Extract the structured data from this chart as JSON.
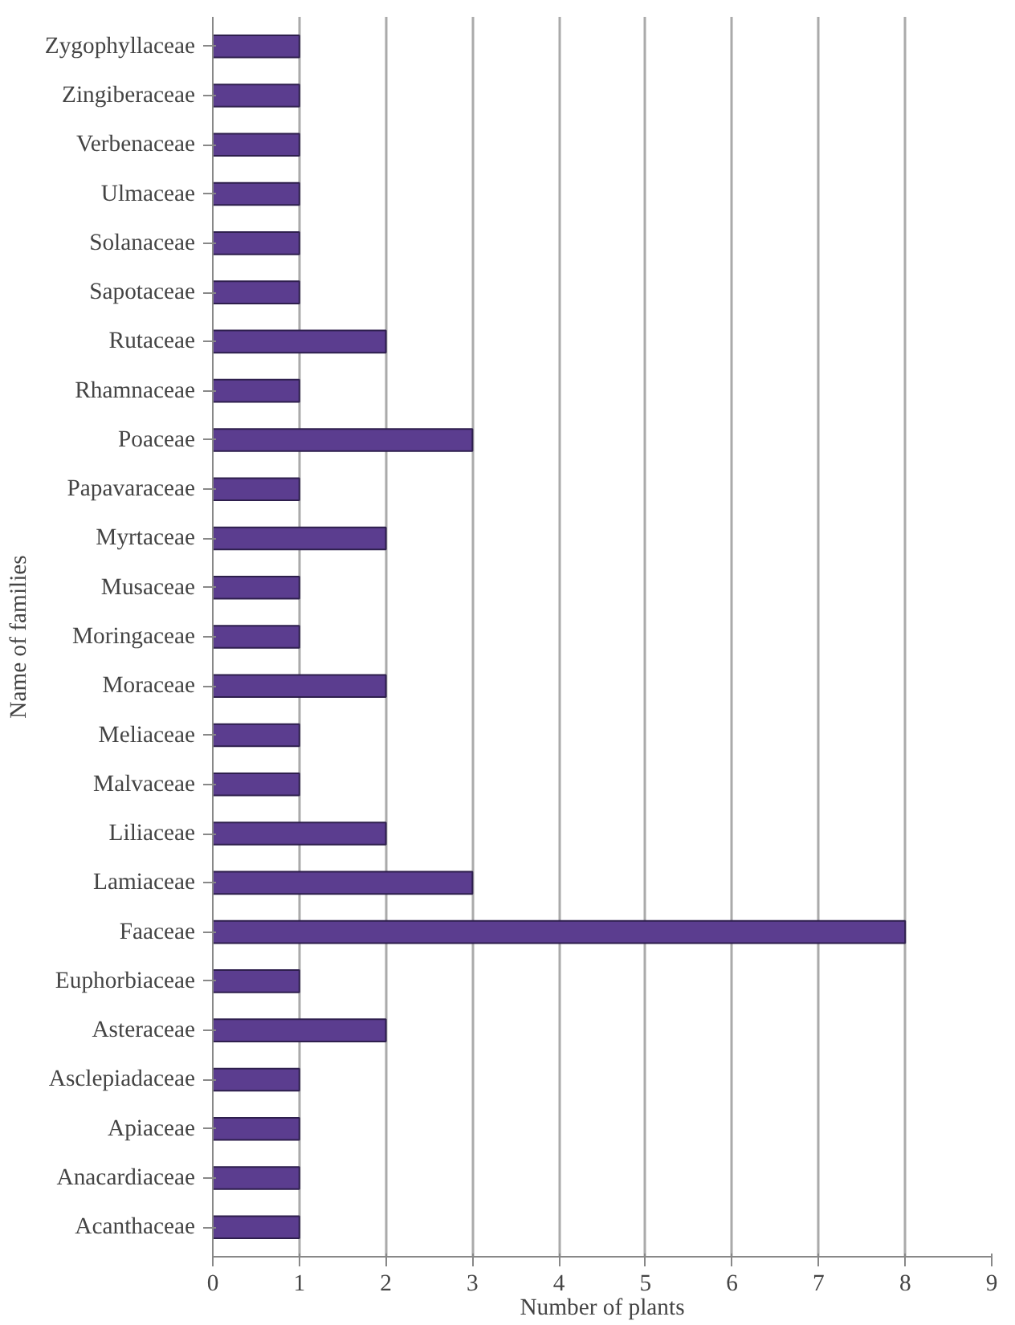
{
  "chart_data": {
    "type": "bar",
    "orientation": "horizontal",
    "xlabel": "Number of plants",
    "ylabel": "Name of families",
    "categories": [
      "Zygophyllaceae",
      "Zingiberaceae",
      "Verbenaceae",
      "Ulmaceae",
      "Solanaceae",
      "Sapotaceae",
      "Rutaceae",
      "Rhamnaceae",
      "Poaceae",
      "Papavaraceae",
      "Myrtaceae",
      "Musaceae",
      "Moringaceae",
      "Moraceae",
      "Meliaceae",
      "Malvaceae",
      "Liliaceae",
      "Lamiaceae",
      "Faaceae",
      "Euphorbiaceae",
      "Asteraceae",
      "Asclepiadaceae",
      "Apiaceae",
      "Anacardiaceae",
      "Acanthaceae"
    ],
    "values": [
      1,
      1,
      1,
      1,
      1,
      1,
      2,
      1,
      3,
      1,
      2,
      1,
      1,
      2,
      1,
      1,
      2,
      3,
      8,
      1,
      2,
      1,
      1,
      1,
      1
    ],
    "color": "#5b3d8f",
    "xlim": [
      0,
      9
    ],
    "xticks": [
      0,
      1,
      2,
      3,
      4,
      5,
      6,
      7,
      8,
      9
    ],
    "grid": "x"
  }
}
